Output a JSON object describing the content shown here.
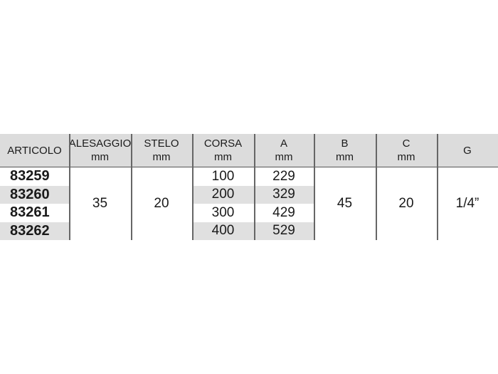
{
  "table": {
    "headers": [
      {
        "title": "ARTICOLO",
        "unit": ""
      },
      {
        "title": "ALESAGGIO",
        "unit": "mm"
      },
      {
        "title": "STELO",
        "unit": "mm"
      },
      {
        "title": "CORSA",
        "unit": "mm"
      },
      {
        "title": "A",
        "unit": "mm"
      },
      {
        "title": "B",
        "unit": "mm"
      },
      {
        "title": "C",
        "unit": "mm"
      },
      {
        "title": "G",
        "unit": ""
      }
    ],
    "articolo": [
      "83259",
      "83260",
      "83261",
      "83262"
    ],
    "corsa": [
      "100",
      "200",
      "300",
      "400"
    ],
    "a": [
      "229",
      "329",
      "429",
      "529"
    ],
    "alesaggio": "35",
    "stelo": "20",
    "b": "45",
    "c": "20",
    "g": "1/4”"
  }
}
